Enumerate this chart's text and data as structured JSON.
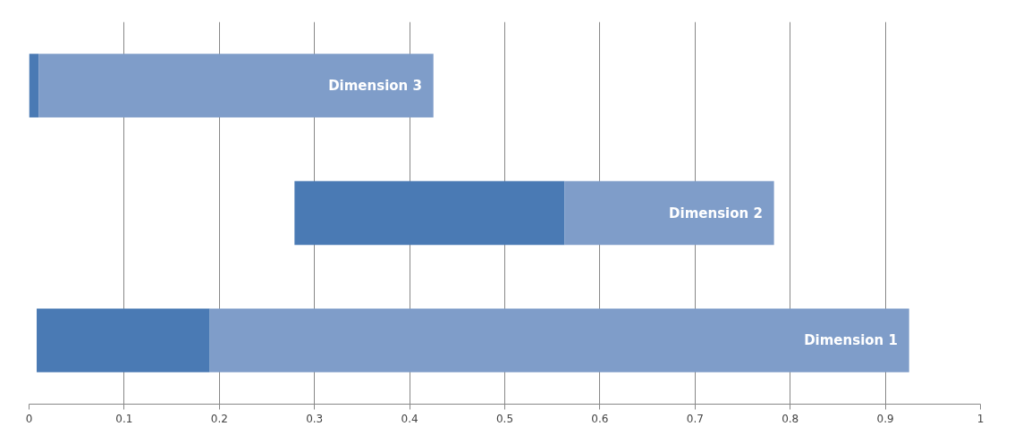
{
  "chart_data": {
    "type": "bar",
    "orientation": "horizontal",
    "categories": [
      "Dimension 3",
      "Dimension 2",
      "Dimension 1"
    ],
    "series": [
      {
        "color": "#4a7ab4",
        "base": [
          0,
          0.279,
          0.008
        ],
        "values": [
          0.01,
          0.284,
          0.182
        ]
      },
      {
        "color": "#7f9dc9",
        "base": [
          0.01,
          0.563,
          0.19
        ],
        "values": [
          0.415,
          0.22,
          0.735
        ]
      }
    ],
    "xlim": [
      0,
      1
    ],
    "xticks": [
      0,
      0.1,
      0.2,
      0.3,
      0.4,
      0.5,
      0.6,
      0.7,
      0.8,
      0.9,
      1
    ],
    "grid": "x",
    "tick_labels": "x"
  }
}
